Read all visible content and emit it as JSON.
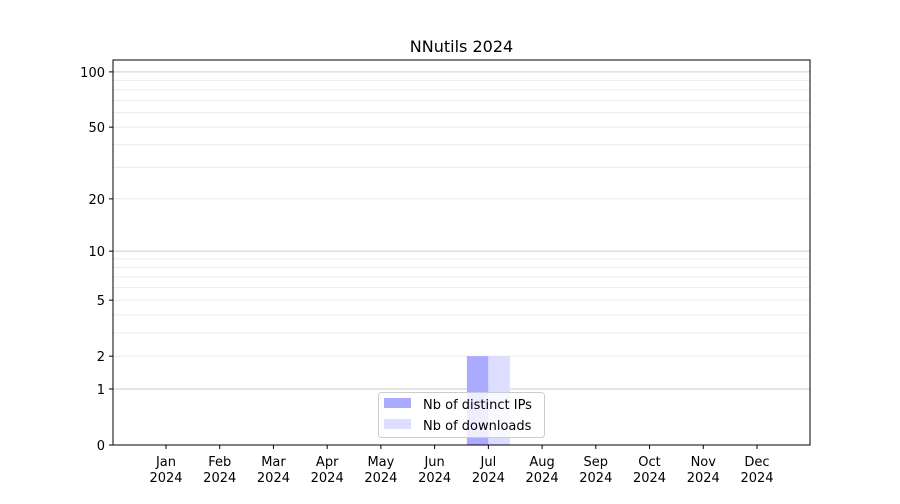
{
  "chart_data": {
    "type": "bar",
    "title": "NNutils 2024",
    "xlabel": "",
    "ylabel": "",
    "y_scale": "log(1+y)",
    "ylim": [
      0,
      116
    ],
    "y_ticks": [
      0,
      1,
      2,
      5,
      10,
      20,
      50,
      100
    ],
    "grid": true,
    "legend_position": "lower center",
    "categories": [
      "Jan\n2024",
      "Feb\n2024",
      "Mar\n2024",
      "Apr\n2024",
      "May\n2024",
      "Jun\n2024",
      "Jul\n2024",
      "Aug\n2024",
      "Sep\n2024",
      "Oct\n2024",
      "Nov\n2024",
      "Dec\n2024"
    ],
    "series": [
      {
        "name": "Nb of distinct IPs",
        "color": "#aaaaff",
        "values": [
          0,
          0,
          0,
          0,
          0,
          0,
          2,
          0,
          0,
          0,
          0,
          0
        ]
      },
      {
        "name": "Nb of downloads",
        "color": "#ddddff",
        "values": [
          0,
          0,
          0,
          0,
          0,
          0,
          2,
          0,
          0,
          0,
          0,
          0
        ]
      }
    ]
  }
}
